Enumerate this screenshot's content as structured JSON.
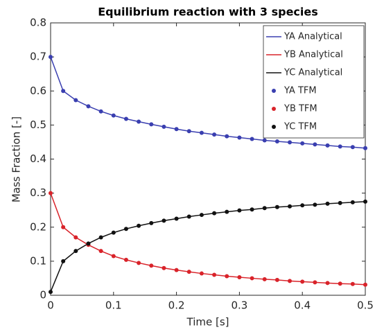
{
  "chart_data": {
    "type": "line",
    "title": "Equilibrium reaction with 3 species",
    "x_label": "Time [s]",
    "y_label": "Mass Fraction [-]",
    "x": [
      0,
      0.02,
      0.04,
      0.06,
      0.08,
      0.1,
      0.12,
      0.14,
      0.16,
      0.18,
      0.2,
      0.22,
      0.24,
      0.26,
      0.28,
      0.3,
      0.32,
      0.34,
      0.36,
      0.38,
      0.4,
      0.42,
      0.44,
      0.46,
      0.48,
      0.5
    ],
    "series": [
      {
        "name": "YA Analytical",
        "type": "line",
        "color": "#3a3fb0",
        "values": [
          0.7,
          0.6,
          0.573,
          0.555,
          0.54,
          0.528,
          0.518,
          0.51,
          0.502,
          0.495,
          0.488,
          0.482,
          0.477,
          0.472,
          0.467,
          0.463,
          0.459,
          0.455,
          0.452,
          0.449,
          0.446,
          0.443,
          0.44,
          0.437,
          0.435,
          0.432
        ]
      },
      {
        "name": "YB Analytical",
        "type": "line",
        "color": "#d9232a",
        "values": [
          0.3,
          0.2,
          0.17,
          0.148,
          0.13,
          0.115,
          0.104,
          0.095,
          0.087,
          0.08,
          0.074,
          0.069,
          0.064,
          0.06,
          0.056,
          0.053,
          0.05,
          0.047,
          0.045,
          0.042,
          0.04,
          0.038,
          0.036,
          0.034,
          0.033,
          0.031
        ]
      },
      {
        "name": "YC Analytical",
        "type": "line",
        "color": "#111111",
        "values": [
          0.01,
          0.1,
          0.13,
          0.152,
          0.17,
          0.184,
          0.195,
          0.204,
          0.212,
          0.219,
          0.225,
          0.231,
          0.236,
          0.241,
          0.245,
          0.249,
          0.252,
          0.256,
          0.259,
          0.261,
          0.264,
          0.266,
          0.269,
          0.271,
          0.273,
          0.275
        ]
      },
      {
        "name": "YA TFM",
        "type": "scatter",
        "color": "#3a3fb0",
        "values": [
          0.7,
          0.6,
          0.573,
          0.555,
          0.54,
          0.528,
          0.518,
          0.51,
          0.502,
          0.495,
          0.488,
          0.482,
          0.477,
          0.472,
          0.467,
          0.463,
          0.459,
          0.455,
          0.452,
          0.449,
          0.446,
          0.443,
          0.44,
          0.437,
          0.435,
          0.432
        ]
      },
      {
        "name": "YB TFM",
        "type": "scatter",
        "color": "#d9232a",
        "values": [
          0.3,
          0.2,
          0.17,
          0.148,
          0.13,
          0.115,
          0.104,
          0.095,
          0.087,
          0.08,
          0.074,
          0.069,
          0.064,
          0.06,
          0.056,
          0.053,
          0.05,
          0.047,
          0.045,
          0.042,
          0.04,
          0.038,
          0.036,
          0.034,
          0.033,
          0.031
        ]
      },
      {
        "name": "YC TFM",
        "type": "scatter",
        "color": "#111111",
        "values": [
          0.01,
          0.1,
          0.13,
          0.152,
          0.17,
          0.184,
          0.195,
          0.204,
          0.212,
          0.219,
          0.225,
          0.231,
          0.236,
          0.241,
          0.245,
          0.249,
          0.252,
          0.256,
          0.259,
          0.261,
          0.264,
          0.266,
          0.269,
          0.271,
          0.273,
          0.275
        ]
      }
    ],
    "xlim": [
      0,
      0.5
    ],
    "xticks": [
      0,
      0.1,
      0.2,
      0.3,
      0.4,
      0.5
    ],
    "ylim": [
      0,
      0.8
    ],
    "yticks": [
      0,
      0.1,
      0.2,
      0.3,
      0.4,
      0.5,
      0.6,
      0.7,
      0.8
    ],
    "grid": false,
    "legend": "top-right"
  }
}
